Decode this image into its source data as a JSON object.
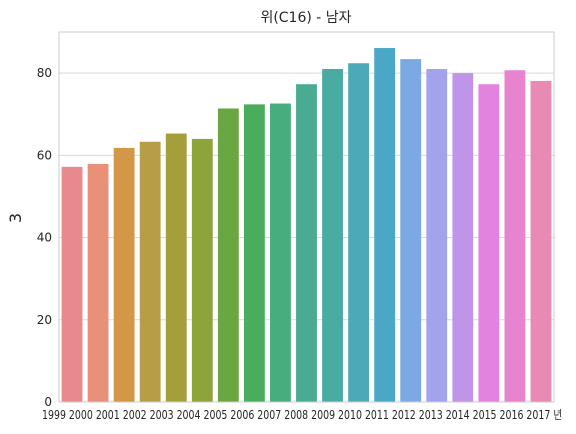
{
  "chart_data": {
    "type": "bar",
    "title": "위(C16) - 남자",
    "xlabel": "",
    "x_axis_text": "1999 2000 2001 2002 2003 2004 2005 2006 2007 2008 2009 2010 2011 2012 2013 2014 2015 2016 2017 년",
    "ylabel": "3",
    "categories": [
      "1999",
      "2000",
      "2001",
      "2002",
      "2003",
      "2004",
      "2005",
      "2006",
      "2007",
      "2008",
      "2009",
      "2010",
      "2011",
      "2012",
      "2013",
      "2014",
      "2015",
      "2016",
      "2017"
    ],
    "values": [
      57.2,
      57.9,
      61.8,
      63.3,
      65.3,
      64.0,
      71.4,
      72.4,
      72.6,
      77.3,
      81.0,
      82.4,
      86.1,
      83.4,
      81.0,
      80.0,
      77.3,
      80.7,
      78.1
    ],
    "ylim": [
      0,
      90
    ],
    "yticks": [
      0,
      20,
      40,
      60,
      80
    ],
    "grid": "y",
    "colors": [
      "#e8898e",
      "#e99178",
      "#d39748",
      "#b79e46",
      "#a49f3b",
      "#8da43b",
      "#6aa641",
      "#4aad5d",
      "#47ad7e",
      "#49ab92",
      "#4aaba3",
      "#4baab6",
      "#4aa7c7",
      "#7aa9e3",
      "#a2a3eb",
      "#c095e9",
      "#e482df",
      "#e883cf",
      "#e98ab4"
    ]
  }
}
